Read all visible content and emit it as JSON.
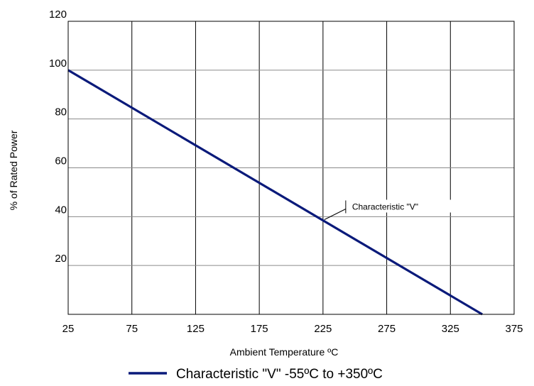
{
  "chart_data": {
    "type": "line",
    "xlabel": "Ambient  Temperature ºC",
    "ylabel": "% of Rated Power",
    "xlim": [
      25,
      375
    ],
    "ylim": [
      0,
      120
    ],
    "x_ticks": [
      25,
      75,
      125,
      175,
      225,
      275,
      325,
      375
    ],
    "y_ticks": [
      20,
      40,
      60,
      80,
      100,
      120
    ],
    "grid": true,
    "series": [
      {
        "name": "Characteristic \"V\" -55ºC to +350ºC",
        "color": "#0a1a7a",
        "x": [
          25,
          350
        ],
        "y": [
          100,
          0
        ]
      }
    ],
    "annotations": [
      {
        "text": "Characteristic \"V\"",
        "x": 225,
        "y": 38.5
      }
    ],
    "legend": {
      "position": "bottom"
    }
  }
}
